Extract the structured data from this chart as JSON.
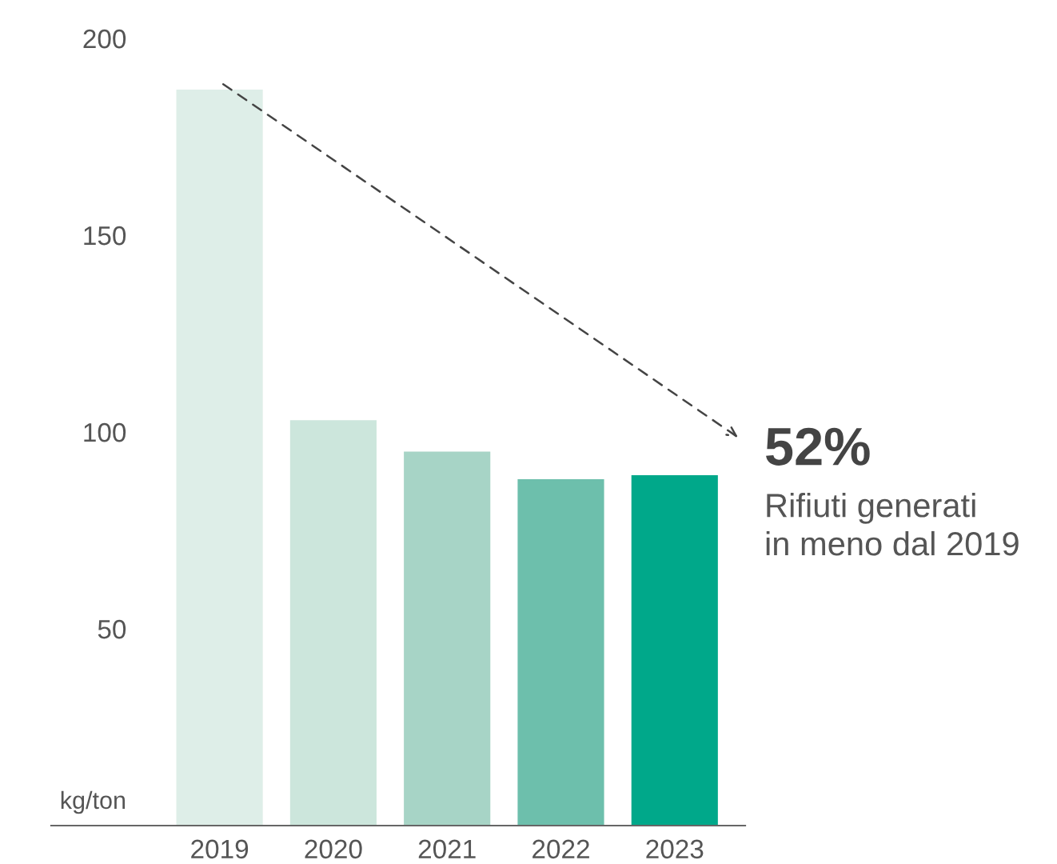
{
  "chart_data": {
    "type": "bar",
    "categories": [
      "2019",
      "2020",
      "2021",
      "2022",
      "2023"
    ],
    "values": [
      187,
      103,
      95,
      88,
      89
    ],
    "colors": [
      "#deeee8",
      "#cce6dc",
      "#a7d4c6",
      "#6dbfac",
      "#00a88a"
    ],
    "ylabel": "kg/ton",
    "ylim": [
      0,
      200
    ],
    "yticks": [
      50,
      100,
      150,
      200
    ],
    "grid": false,
    "annotations": [
      "52%",
      "Rifiuti generati\nin meno dal 2019"
    ]
  }
}
